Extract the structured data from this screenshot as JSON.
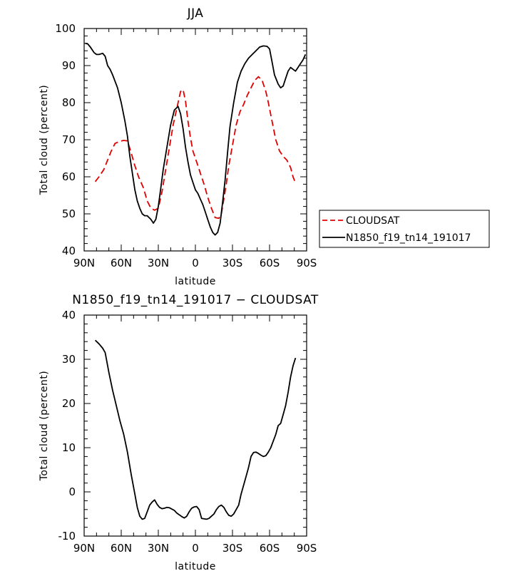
{
  "chart_data": [
    {
      "type": "line",
      "title": "JJA",
      "xlabel": "latitude",
      "ylabel": "Total cloud (percent)",
      "xlim": [
        90,
        -90
      ],
      "ylim": [
        40,
        100
      ],
      "xticks": [
        90,
        60,
        30,
        0,
        -30,
        -60,
        -90
      ],
      "xtick_labels": [
        "90N",
        "60N",
        "30N",
        "0",
        "30S",
        "60S",
        "90S"
      ],
      "yticks": [
        40,
        50,
        60,
        70,
        80,
        90,
        100
      ],
      "legend_position": "right",
      "series": [
        {
          "name": "CLOUDSAT",
          "color": "#e00000",
          "dash": "dashed",
          "x": [
            81,
            78,
            74,
            71,
            68,
            65,
            61,
            58,
            55,
            52,
            49,
            46,
            42,
            39,
            36,
            33,
            30,
            27,
            24,
            21,
            18,
            15,
            12,
            10,
            8,
            6,
            4,
            2,
            0,
            -2,
            -4,
            -7,
            -10,
            -13,
            -16,
            -19,
            -21,
            -23,
            -25,
            -27,
            -30,
            -33,
            -36,
            -39,
            -42,
            -45,
            -48,
            -51,
            -54,
            -57,
            -59,
            -62,
            -65,
            -68,
            -71,
            -74,
            -77,
            -79,
            -81
          ],
          "values": [
            58.7,
            60,
            62,
            64.5,
            67,
            69,
            69.6,
            69.8,
            69.7,
            66.5,
            63,
            60,
            57,
            53.5,
            51.5,
            51,
            51.5,
            56,
            62,
            68,
            74,
            78.5,
            83,
            83.5,
            80.5,
            75,
            70.5,
            67,
            65,
            63,
            61,
            58,
            54.5,
            51.5,
            49,
            48.8,
            50,
            54,
            58,
            63,
            68.5,
            74,
            77.5,
            79.5,
            82,
            84,
            86,
            87,
            86,
            83,
            80,
            75,
            70,
            67,
            65.5,
            64.5,
            62.5,
            60,
            58.3
          ]
        },
        {
          "name": "N1850_f19_tn14_191017",
          "color": "#000000",
          "dash": "solid",
          "x": [
            89,
            87,
            85,
            82,
            80,
            78,
            75,
            73,
            71,
            69,
            67,
            63,
            60,
            57,
            55,
            53,
            51,
            49,
            47,
            45,
            43,
            41,
            39,
            36,
            34,
            32,
            30,
            28,
            26,
            23,
            20,
            17,
            14,
            12,
            10,
            8,
            6,
            4,
            2,
            0,
            -2,
            -4,
            -6,
            -8,
            -10,
            -12,
            -14,
            -16,
            -18,
            -20,
            -22,
            -24,
            -26,
            -28,
            -31,
            -34,
            -37,
            -40,
            -43,
            -46,
            -49,
            -52,
            -55,
            -58,
            -60,
            -62,
            -64,
            -67,
            -69,
            -71,
            -73,
            -75,
            -77,
            -79,
            -81,
            -83,
            -85,
            -87,
            -89
          ],
          "values": [
            96,
            95.8,
            95,
            93.5,
            93,
            93,
            93.3,
            92.5,
            90,
            89,
            87.5,
            84,
            80,
            75,
            71,
            65.5,
            61,
            56.5,
            53.5,
            51.5,
            50,
            49.5,
            49.5,
            48.5,
            47.5,
            48.5,
            52,
            57,
            62,
            68,
            74,
            78,
            79,
            77,
            73,
            68,
            64,
            60.5,
            58.5,
            56.5,
            55.5,
            54,
            52.5,
            50.5,
            48.5,
            46.5,
            45,
            44.3,
            45,
            47.5,
            53,
            59,
            66.5,
            73.5,
            80,
            85.5,
            88.5,
            90.5,
            92,
            93,
            94,
            95,
            95.3,
            95.2,
            94.5,
            91,
            87.5,
            85,
            84,
            84.5,
            86.5,
            88.5,
            89.5,
            89,
            88.5,
            89.5,
            90.5,
            91.5,
            93
          ]
        }
      ]
    },
    {
      "type": "line",
      "title": "N1850_f19_tn14_191017 − CLOUDSAT",
      "xlabel": "latitude",
      "ylabel": "Total cloud (percent)",
      "xlim": [
        90,
        -90
      ],
      "ylim": [
        -10,
        40
      ],
      "xticks": [
        90,
        60,
        30,
        0,
        -30,
        -60,
        -90
      ],
      "xtick_labels": [
        "90N",
        "60N",
        "30N",
        "0",
        "30S",
        "60S",
        "90S"
      ],
      "yticks": [
        -10,
        0,
        10,
        20,
        30,
        40
      ],
      "series": [
        {
          "color": "#000000",
          "dash": "solid",
          "x": [
            81,
            78,
            75,
            73,
            70,
            67,
            64,
            61,
            58,
            55,
            52,
            49,
            47,
            45,
            43,
            41,
            39,
            37,
            35,
            33,
            31,
            29,
            27,
            25,
            23,
            21,
            19,
            17,
            15,
            13,
            11,
            9,
            7,
            5,
            3,
            1,
            -1,
            -3,
            -5,
            -7,
            -9,
            -11,
            -13,
            -15,
            -17,
            -19,
            -21,
            -23,
            -25,
            -27,
            -29,
            -31,
            -33,
            -35,
            -37,
            -39,
            -41,
            -43,
            -45,
            -47,
            -49,
            -51,
            -53,
            -55,
            -57,
            -59,
            -61,
            -63,
            -65,
            -67,
            -69,
            -71,
            -73,
            -75,
            -77,
            -79,
            -81
          ],
          "values": [
            34.3,
            33.5,
            32.5,
            31.5,
            27,
            23,
            19.5,
            16,
            13,
            9,
            4,
            -0.5,
            -3.5,
            -5.5,
            -6.2,
            -6,
            -4.5,
            -3,
            -2.3,
            -1.8,
            -2.8,
            -3.5,
            -3.8,
            -3.7,
            -3.5,
            -3.6,
            -3.9,
            -4.2,
            -4.8,
            -5.2,
            -5.6,
            -5.9,
            -5.5,
            -4.5,
            -3.7,
            -3.4,
            -3.3,
            -4,
            -6,
            -6.1,
            -6.2,
            -6,
            -5.5,
            -5,
            -4,
            -3.3,
            -3,
            -3.5,
            -4.5,
            -5.3,
            -5.5,
            -5,
            -4,
            -3,
            -0.5,
            1.5,
            3.5,
            5.5,
            8,
            8.9,
            9,
            8.7,
            8.3,
            8,
            8.2,
            9,
            10,
            11.5,
            13,
            15,
            15.5,
            17.5,
            19.5,
            22.5,
            26,
            28.5,
            30.3
          ]
        }
      ]
    }
  ]
}
